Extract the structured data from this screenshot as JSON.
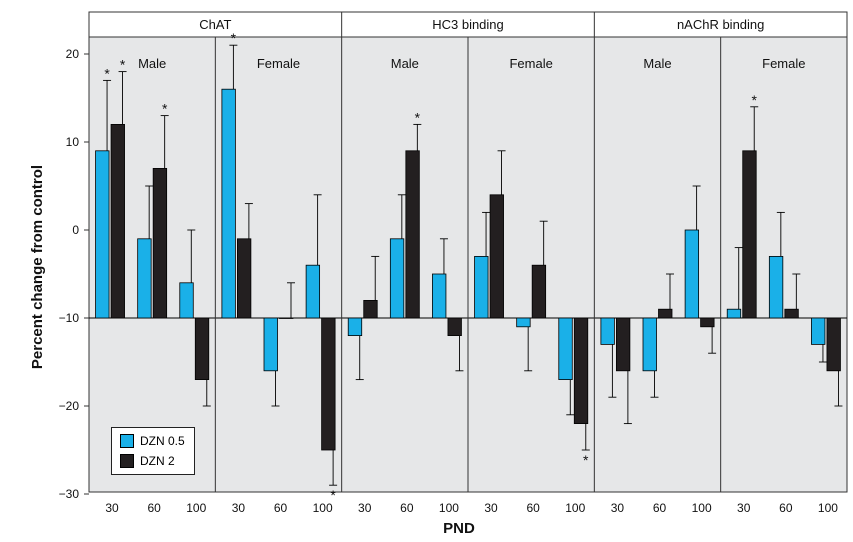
{
  "chart_data": {
    "type": "bar",
    "ylabel": "Percent change from control",
    "xlabel": "PND",
    "ylim": [
      -30,
      22
    ],
    "yticks": [
      20,
      10,
      0,
      -10,
      -20,
      -30
    ],
    "ytick_labels": [
      "20",
      "10",
      "0",
      "−10",
      "−20",
      "−30"
    ],
    "baseline": -10,
    "grid": false,
    "legend_position": "bottom-left",
    "series": [
      {
        "name": "DZN 0.5",
        "color": "#1ab0e8"
      },
      {
        "name": "DZN 2",
        "color": "#231f20"
      }
    ],
    "panels": [
      {
        "title": "ChAT",
        "groups": [
          {
            "label": "Male",
            "categories": [
              "30",
              "60",
              "100"
            ],
            "values": [
              [
                9,
                -1,
                -6
              ],
              [
                12,
                7,
                -17
              ]
            ],
            "errors": [
              [
                17,
                5,
                0
              ],
              [
                18,
                13,
                -20
              ]
            ],
            "stars": [
              [
                true,
                false,
                false
              ],
              [
                true,
                true,
                false
              ]
            ]
          },
          {
            "label": "Female",
            "categories": [
              "30",
              "60",
              "100"
            ],
            "values": [
              [
                16,
                -16,
                -4
              ],
              [
                -1,
                -10,
                -25
              ]
            ],
            "errors": [
              [
                21,
                -20,
                4
              ],
              [
                3,
                -6,
                -29
              ]
            ],
            "stars": [
              [
                true,
                false,
                false
              ],
              [
                false,
                false,
                true
              ]
            ]
          }
        ]
      },
      {
        "title": "HC3 binding",
        "groups": [
          {
            "label": "Male",
            "categories": [
              "30",
              "60",
              "100"
            ],
            "values": [
              [
                -12,
                -1,
                -5
              ],
              [
                -8,
                9,
                -12
              ]
            ],
            "errors": [
              [
                -17,
                4,
                -1
              ],
              [
                -3,
                12,
                -16
              ]
            ],
            "stars": [
              [
                false,
                false,
                false
              ],
              [
                false,
                true,
                false
              ]
            ]
          },
          {
            "label": "Female",
            "categories": [
              "30",
              "60",
              "100"
            ],
            "values": [
              [
                -3,
                -11,
                -17
              ],
              [
                4,
                -4,
                -22
              ]
            ],
            "errors": [
              [
                2,
                -16,
                -21
              ],
              [
                9,
                1,
                -25
              ]
            ],
            "stars": [
              [
                false,
                false,
                false
              ],
              [
                false,
                false,
                true
              ]
            ]
          }
        ]
      },
      {
        "title": "nAChR binding",
        "groups": [
          {
            "label": "Male",
            "categories": [
              "30",
              "60",
              "100"
            ],
            "values": [
              [
                -13,
                -16,
                0
              ],
              [
                -16,
                -9,
                -11
              ]
            ],
            "errors": [
              [
                -19,
                -19,
                5
              ],
              [
                -22,
                -5,
                -14
              ]
            ],
            "stars": [
              [
                false,
                false,
                false
              ],
              [
                false,
                false,
                false
              ]
            ]
          },
          {
            "label": "Female",
            "categories": [
              "30",
              "60",
              "100"
            ],
            "values": [
              [
                -9,
                -3,
                -13
              ],
              [
                9,
                -9,
                -16
              ]
            ],
            "errors": [
              [
                -2,
                2,
                -15
              ],
              [
                14,
                -5,
                -20
              ]
            ],
            "stars": [
              [
                false,
                false,
                false
              ],
              [
                true,
                false,
                false
              ]
            ]
          }
        ]
      }
    ]
  }
}
